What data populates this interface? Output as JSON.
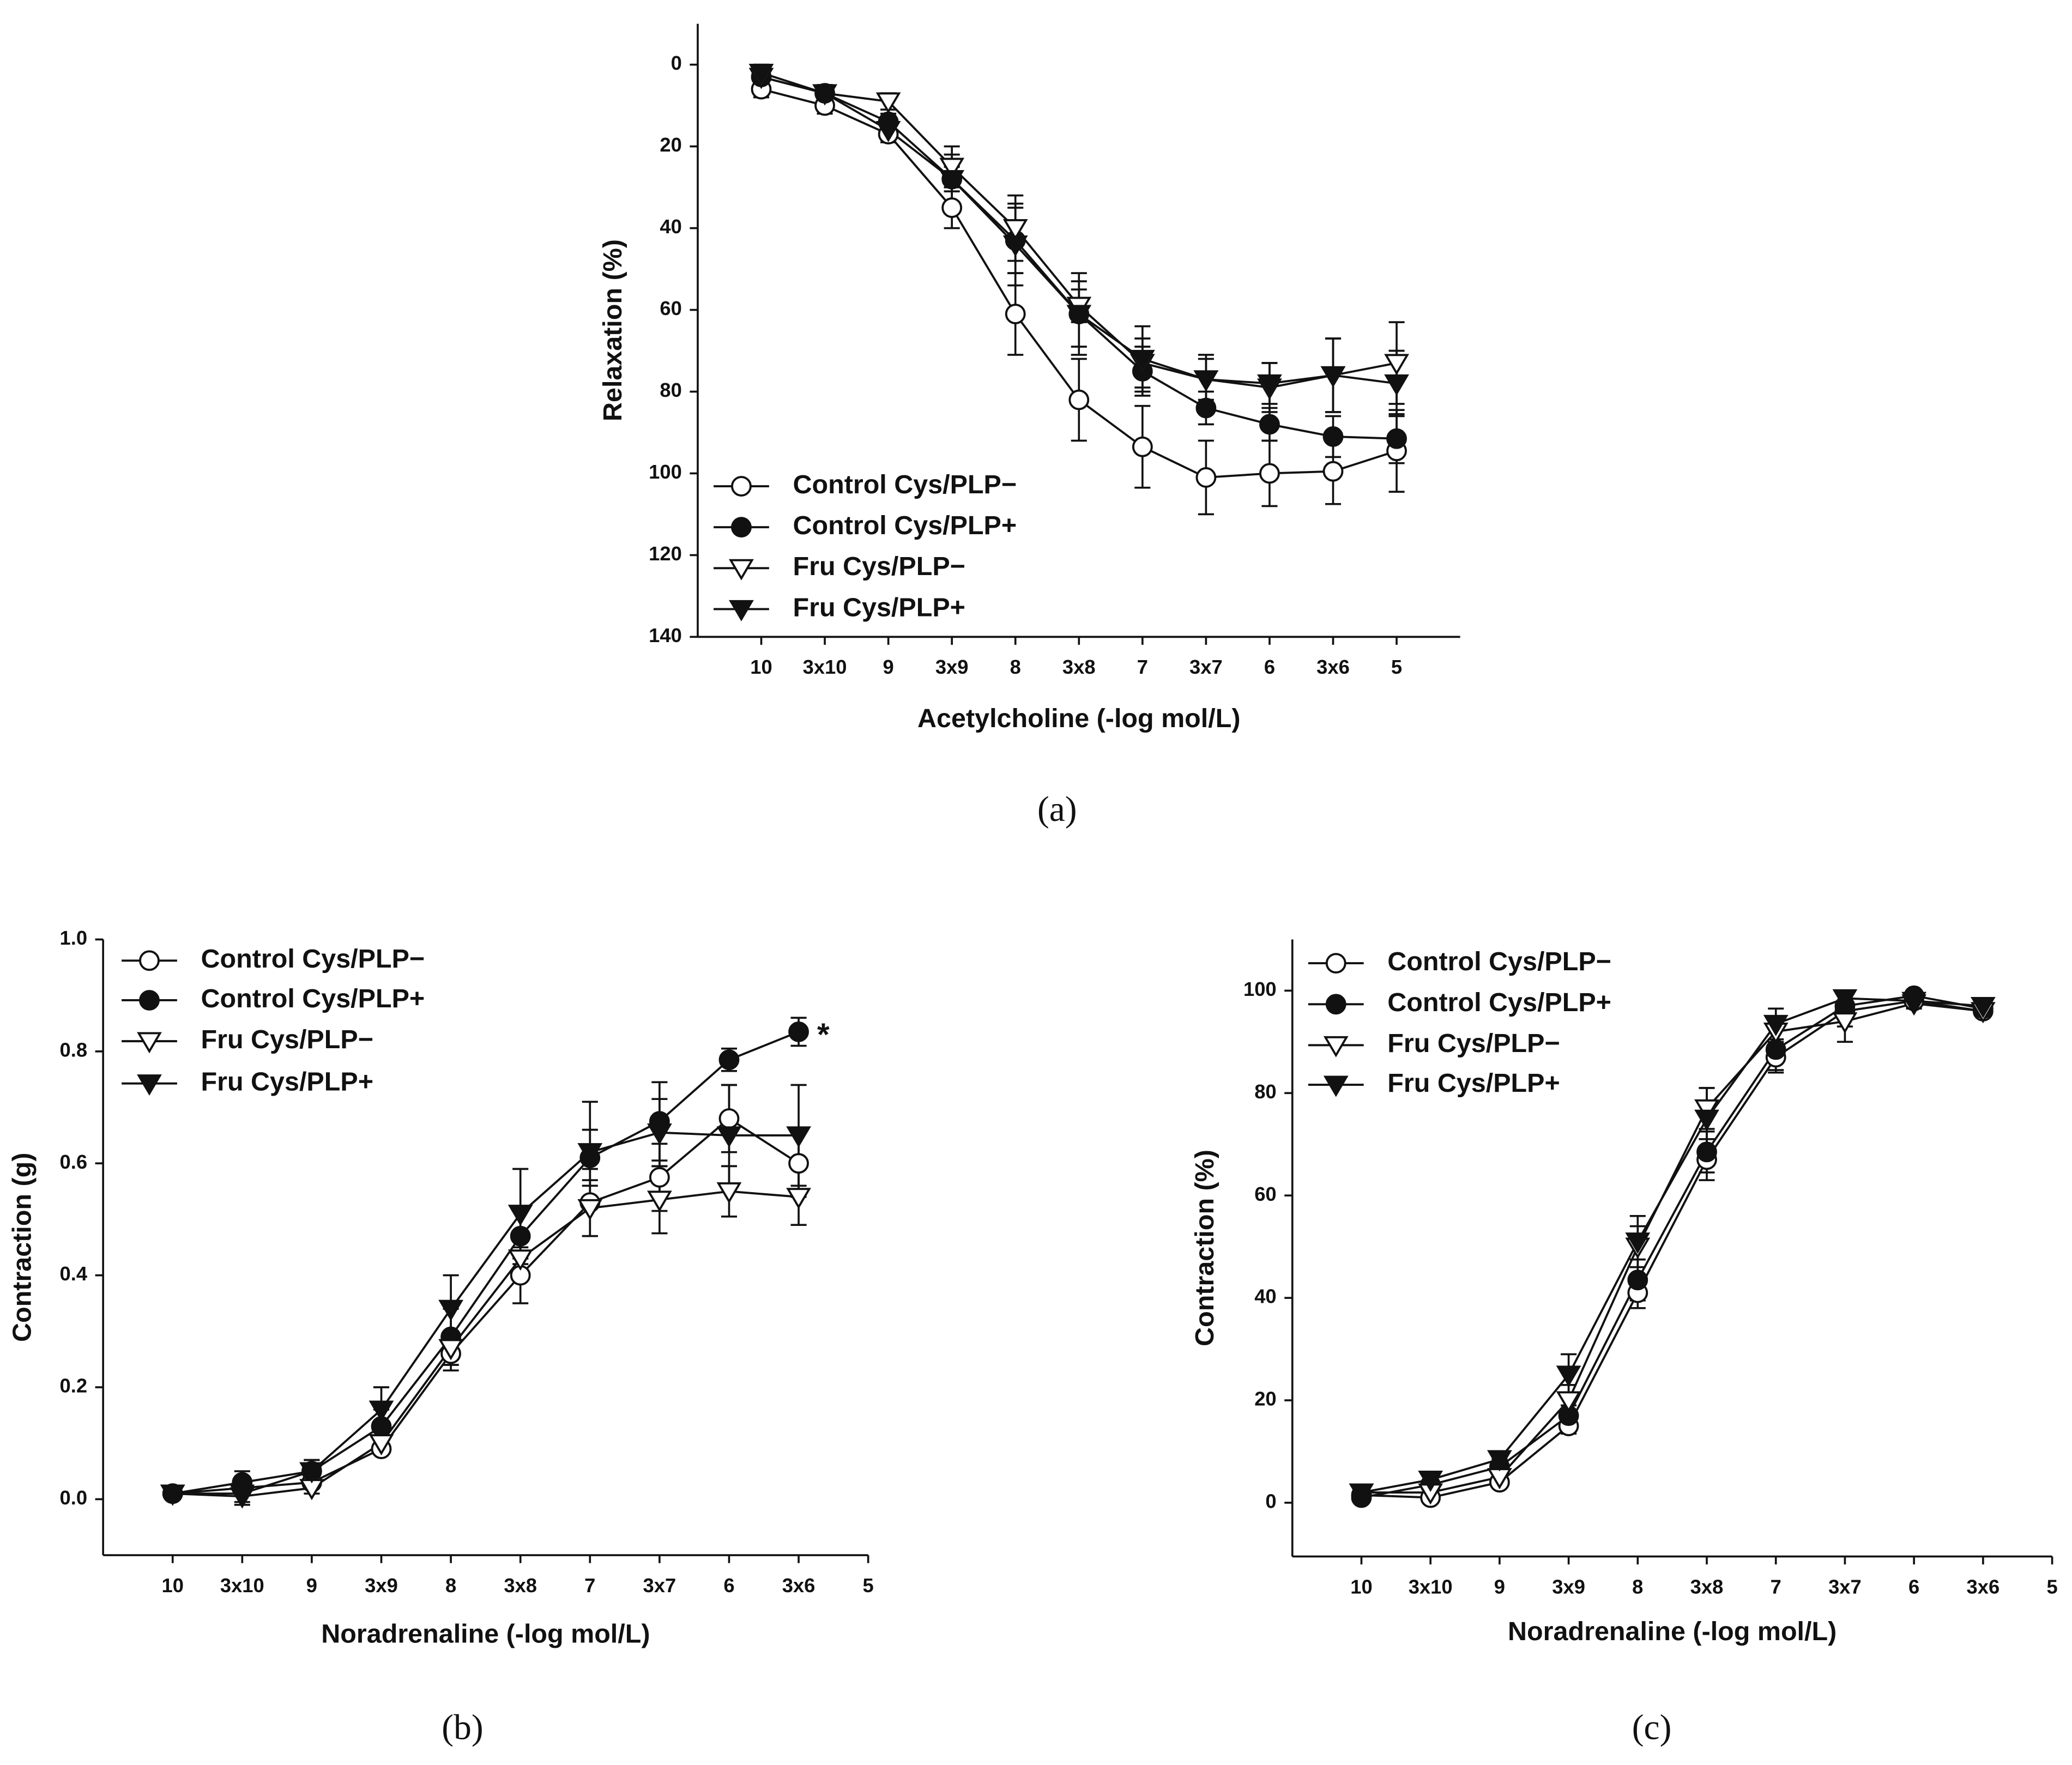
{
  "chart_data": [
    {
      "type": "line",
      "panel_label": "(a)",
      "xlabel": "Acetylcholine (-log mol/L)",
      "ylabel": "Relaxation (%)",
      "categories": [
        "10",
        "3x10",
        "9",
        "3x9",
        "8",
        "3x8",
        "7",
        "3x7",
        "6",
        "3x6",
        "5"
      ],
      "ylim": [
        -10,
        140
      ],
      "y_inverted": true,
      "yticks": [
        0,
        20,
        40,
        60,
        80,
        100,
        120,
        140
      ],
      "series": [
        {
          "name": "Control Cys/PLP−",
          "color": "#111111",
          "marker": "circle-open",
          "values": [
            6,
            10,
            17,
            35,
            61,
            82,
            93.5,
            101,
            100,
            99.5,
            94.5
          ],
          "errors": [
            2,
            2,
            2,
            5,
            10,
            10,
            10,
            9,
            8,
            8,
            10
          ]
        },
        {
          "name": "Control Cys/PLP+",
          "color": "#111111",
          "marker": "circle-filled",
          "values": [
            3,
            7,
            14,
            28,
            43,
            61,
            75,
            84,
            88,
            91,
            91.5
          ],
          "errors": [
            2,
            2,
            2,
            3,
            8,
            8,
            6,
            4,
            4,
            5,
            6
          ]
        },
        {
          "name": "Fru Cys/PLP−",
          "color": "#111111",
          "marker": "triangle-open",
          "values": [
            3,
            7,
            9,
            25,
            40,
            59,
            73,
            77,
            79,
            76,
            73
          ],
          "errors": [
            2,
            2,
            2,
            5,
            8,
            4,
            6,
            5,
            6,
            9,
            10
          ]
        },
        {
          "name": "Fru Cys/PLP+",
          "color": "#111111",
          "marker": "triangle-filled",
          "values": [
            2,
            7,
            16,
            28,
            44,
            61,
            72,
            77,
            78,
            76,
            78
          ],
          "errors": [
            2,
            2,
            2,
            6,
            10,
            10,
            8,
            6,
            5,
            9,
            8
          ]
        }
      ]
    },
    {
      "type": "line",
      "panel_label": "(b)",
      "xlabel": "Noradrenaline (-log mol/L)",
      "ylabel": "Contraction (g)",
      "categories": [
        "10",
        "3x10",
        "9",
        "3x9",
        "8",
        "3x8",
        "7",
        "3x7",
        "6",
        "3x6",
        "5"
      ],
      "ylim": [
        -0.1,
        1.0
      ],
      "y_inverted": false,
      "yticks": [
        {
          "value": 0,
          "label": "0.0"
        },
        0.2,
        0.4,
        0.6,
        0.8,
        {
          "value": 1,
          "label": "1.0"
        }
      ],
      "annotation": "*",
      "series": [
        {
          "name": "Control Cys/PLP−",
          "color": "#111111",
          "marker": "circle-open",
          "values": [
            0.01,
            0.02,
            0.03,
            0.09,
            0.26,
            0.4,
            0.53,
            0.575,
            0.68,
            0.6,
            null
          ],
          "errors": [
            0.01,
            0.01,
            0.01,
            0.01,
            0.03,
            0.05,
            0.06,
            0.06,
            0.06,
            0.06,
            null
          ]
        },
        {
          "name": "Control Cys/PLP+",
          "color": "#111111",
          "marker": "circle-filled",
          "values": [
            0.01,
            0.03,
            0.05,
            0.13,
            0.29,
            0.47,
            0.61,
            0.675,
            0.785,
            0.835,
            null
          ],
          "errors": [
            0.01,
            0.02,
            0.02,
            0.03,
            0.05,
            0.05,
            0.05,
            0.07,
            0.02,
            0.025,
            null
          ]
        },
        {
          "name": "Fru Cys/PLP−",
          "color": "#111111",
          "marker": "triangle-open",
          "values": [
            0.01,
            0.005,
            0.02,
            0.1,
            0.27,
            0.43,
            0.52,
            0.535,
            0.55,
            0.54,
            null
          ],
          "errors": [
            0.01,
            0.01,
            0.01,
            0.01,
            0.03,
            0.03,
            0.05,
            0.06,
            0.045,
            0.05,
            null
          ]
        },
        {
          "name": "Fru Cys/PLP+",
          "color": "#111111",
          "marker": "triangle-filled",
          "values": [
            0.01,
            0.01,
            0.05,
            0.16,
            0.34,
            0.51,
            0.62,
            0.655,
            0.65,
            0.65,
            null
          ],
          "errors": [
            0.01,
            0.02,
            0.02,
            0.04,
            0.06,
            0.08,
            0.09,
            0.06,
            0.09,
            0.09,
            null
          ]
        }
      ]
    },
    {
      "type": "line",
      "panel_label": "(c)",
      "xlabel": "Noradrenaline (-log mol/L)",
      "ylabel": "Contraction (%)",
      "categories": [
        "10",
        "3x10",
        "9",
        "3x9",
        "8",
        "3x8",
        "7",
        "3x7",
        "6",
        "3x6",
        "5"
      ],
      "ylim": [
        -10.5,
        110
      ],
      "y_inverted": false,
      "yticks": [
        0,
        20,
        40,
        60,
        80,
        100
      ],
      "series": [
        {
          "name": "Control Cys/PLP−",
          "color": "#111111",
          "marker": "circle-open",
          "values": [
            1.5,
            1,
            4,
            15,
            41,
            67,
            87,
            96,
            98,
            96,
            null
          ],
          "errors": [
            1,
            1,
            1,
            1.5,
            3,
            4,
            3,
            3,
            1,
            1,
            null
          ]
        },
        {
          "name": "Control Cys/PLP+",
          "color": "#111111",
          "marker": "circle-filled",
          "values": [
            1,
            3.5,
            7,
            17,
            43.5,
            68.5,
            88.5,
            97,
            99,
            96.5,
            null
          ],
          "errors": [
            1,
            1,
            1.5,
            2,
            4,
            4,
            4,
            2,
            1,
            1,
            null
          ]
        },
        {
          "name": "Fru Cys/PLP−",
          "color": "#111111",
          "marker": "triangle-open",
          "values": [
            2,
            2,
            5,
            20,
            50,
            77,
            92,
            94,
            97.5,
            96,
            null
          ],
          "errors": [
            1,
            1,
            1,
            3,
            4,
            4,
            3,
            4,
            1,
            1,
            null
          ]
        },
        {
          "name": "Fru Cys/PLP+",
          "color": "#111111",
          "marker": "triangle-filled",
          "values": [
            2,
            4.5,
            8.5,
            25,
            51,
            75,
            93.5,
            98.5,
            98,
            97,
            null
          ],
          "errors": [
            1,
            1,
            1,
            4,
            5,
            6,
            3,
            1,
            1,
            1,
            null
          ]
        }
      ]
    }
  ]
}
